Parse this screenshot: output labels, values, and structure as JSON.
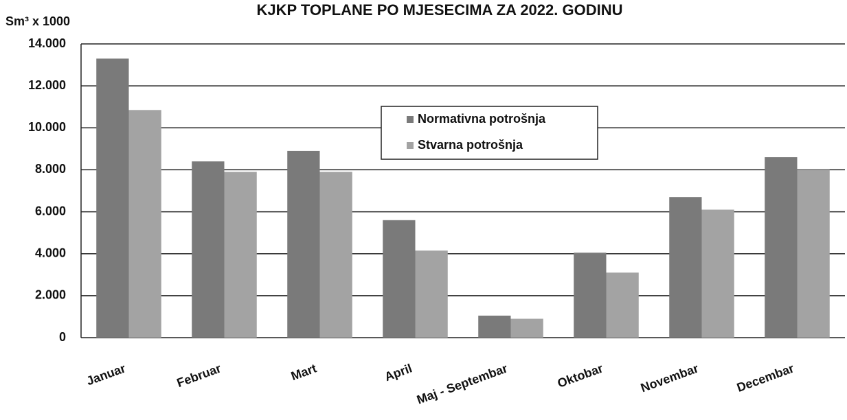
{
  "chart_data": {
    "type": "bar",
    "title": "KJKP TOPLANE PO MJESECIMA ZA 2022. GODINU",
    "y_label": "Sm³ x 1000",
    "categories": [
      "Januar",
      "Februar",
      "Mart",
      "April",
      "Maj - Septembar",
      "Oktobar",
      "Novembar",
      "Decembar"
    ],
    "series": [
      {
        "name": "Normativna potrošnja",
        "color": "#7a7a7a",
        "values": [
          13300,
          8400,
          8900,
          5600,
          1050,
          4050,
          6700,
          8600
        ]
      },
      {
        "name": "Stvarna potrošnja",
        "color": "#a3a3a3",
        "values": [
          10850,
          7900,
          7900,
          4150,
          900,
          3100,
          6100,
          8000
        ]
      }
    ],
    "ylim": [
      0,
      14000
    ],
    "yticks": [
      0,
      {
        "value": 2000,
        "label": "2.000"
      },
      {
        "value": 4000,
        "label": "4.000"
      },
      {
        "value": 6000,
        "label": "6.000"
      },
      {
        "value": 8000,
        "label": "8.000"
      },
      {
        "value": 10000,
        "label": "10.000"
      },
      {
        "value": 12000,
        "label": "12.000"
      },
      {
        "value": 14000,
        "label": "14.000"
      }
    ],
    "grid": true,
    "legend": "top"
  }
}
